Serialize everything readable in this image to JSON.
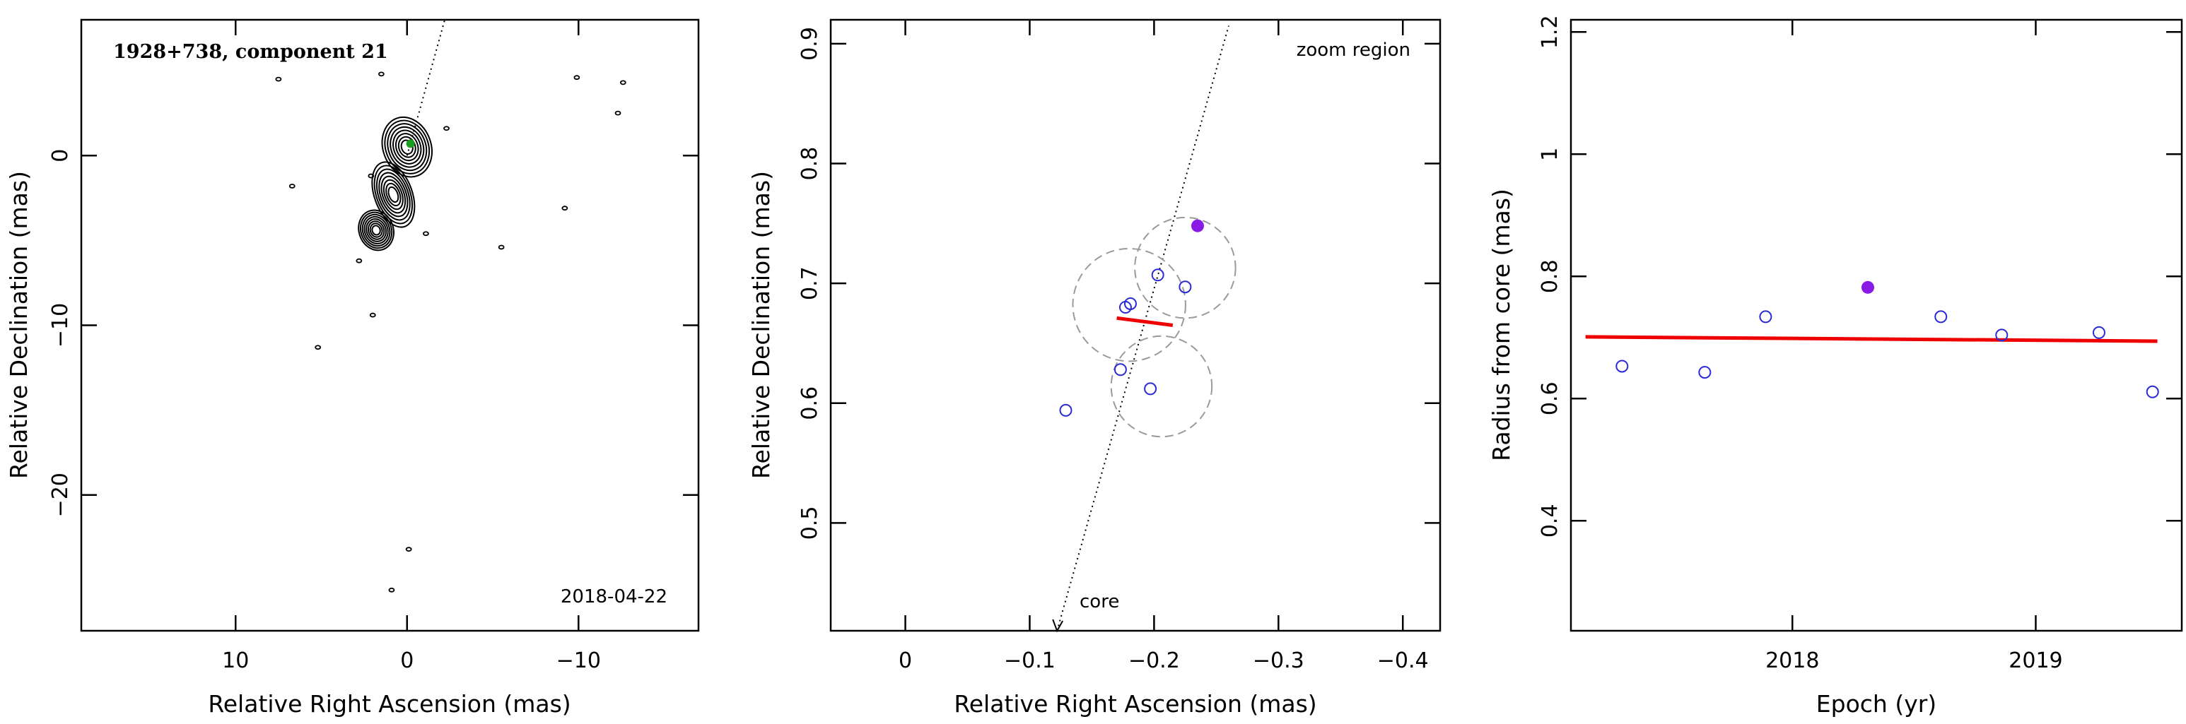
{
  "colors": {
    "contour": "#000000",
    "component_marker": "#1b9e1b",
    "open_points": "#2b2bd6",
    "highlight_point": "#8a1ae6",
    "fit_line": "#ee0000",
    "uncertainty_circles": "#9a9a9a"
  },
  "chart_data": [
    {
      "type": "contour",
      "title": "1928+738, component 21",
      "xlabel": "Relative Right Ascension (mas)",
      "ylabel": "Relative Declination (mas)",
      "xlim": [
        19,
        -17
      ],
      "ylim": [
        -28,
        8
      ],
      "xticks": [
        10,
        0,
        -10
      ],
      "yticks": [
        0,
        -10,
        -20
      ],
      "annotation": "2018-04-22",
      "jet": {
        "direction_line": {
          "from": [
            0,
            0
          ],
          "to": [
            -2.2,
            8
          ]
        },
        "component_position": [
          -0.2,
          0.7
        ],
        "knots": [
          {
            "center": [
              0.0,
              0.5
            ],
            "rx": 1.4,
            "ry": 1.8
          },
          {
            "center": [
              0.8,
              -2.3
            ],
            "rx": 1.1,
            "ry": 2.0
          },
          {
            "center": [
              1.8,
              -4.4
            ],
            "rx": 1.0,
            "ry": 1.2
          }
        ],
        "islands": [
          [
            7.5,
            4.5
          ],
          [
            1.5,
            4.8
          ],
          [
            -2.3,
            1.6
          ],
          [
            -9.9,
            4.6
          ],
          [
            -12.6,
            4.3
          ],
          [
            -12.3,
            2.5
          ],
          [
            6.7,
            -1.8
          ],
          [
            2.1,
            -1.2
          ],
          [
            -9.2,
            -3.1
          ],
          [
            -1.1,
            -4.6
          ],
          [
            -5.5,
            -5.4
          ],
          [
            2.8,
            -6.2
          ],
          [
            2.0,
            -9.4
          ],
          [
            5.2,
            -11.3
          ],
          [
            -0.1,
            -23.2
          ],
          [
            0.9,
            -25.6
          ]
        ]
      }
    },
    {
      "type": "scatter",
      "xlabel": "Relative Right Ascension (mas)",
      "ylabel": "Relative Declination (mas)",
      "xlim": [
        0.06,
        -0.43
      ],
      "ylim": [
        0.41,
        0.92
      ],
      "xticks": [
        0,
        -0.1,
        -0.2,
        -0.3,
        -0.4
      ],
      "xtick_labels": [
        "0",
        "−0.1",
        "−0.2",
        "−0.3",
        "−0.4"
      ],
      "yticks": [
        0.5,
        0.6,
        0.7,
        0.8,
        0.9
      ],
      "annotations": {
        "zoom": "zoom region",
        "core": "core"
      },
      "direction_line": {
        "from": [
          -0.122,
          0.41
        ],
        "to": [
          -0.26,
          0.915
        ]
      },
      "points": [
        {
          "x": -0.129,
          "y": 0.594
        },
        {
          "x": -0.173,
          "y": 0.628
        },
        {
          "x": -0.177,
          "y": 0.68
        },
        {
          "x": -0.181,
          "y": 0.683
        },
        {
          "x": -0.197,
          "y": 0.612
        },
        {
          "x": -0.203,
          "y": 0.707
        },
        {
          "x": -0.225,
          "y": 0.697
        }
      ],
      "highlight_point": {
        "x": -0.235,
        "y": 0.748
      },
      "uncertainty_circles": [
        {
          "x": -0.18,
          "y": 0.682,
          "r": 0.047
        },
        {
          "x": -0.206,
          "y": 0.614,
          "r": 0.042
        },
        {
          "x": -0.225,
          "y": 0.713,
          "r": 0.042
        }
      ],
      "fit": {
        "from": [
          -0.17,
          0.671
        ],
        "to": [
          -0.215,
          0.665
        ]
      }
    },
    {
      "type": "scatter",
      "xlabel": "Epoch (yr)",
      "ylabel": "Radius from core (mas)",
      "xlim": [
        2017.09,
        2019.6
      ],
      "ylim": [
        0.22,
        1.22
      ],
      "xticks": [
        2018,
        2019
      ],
      "yticks": [
        0.4,
        0.6,
        0.8,
        1.0,
        1.2
      ],
      "ytick_labels": [
        "0.4",
        "0.6",
        "0.8",
        "1",
        "1.2"
      ],
      "points": [
        {
          "x": 2017.3,
          "y": 0.653
        },
        {
          "x": 2017.64,
          "y": 0.643
        },
        {
          "x": 2017.89,
          "y": 0.734
        },
        {
          "x": 2018.61,
          "y": 0.734
        },
        {
          "x": 2018.86,
          "y": 0.704
        },
        {
          "x": 2019.26,
          "y": 0.708
        },
        {
          "x": 2019.48,
          "y": 0.611
        }
      ],
      "highlight_point": {
        "x": 2018.31,
        "y": 0.782
      },
      "fit": {
        "from": [
          2017.15,
          0.701
        ],
        "to": [
          2019.5,
          0.694
        ]
      }
    }
  ]
}
